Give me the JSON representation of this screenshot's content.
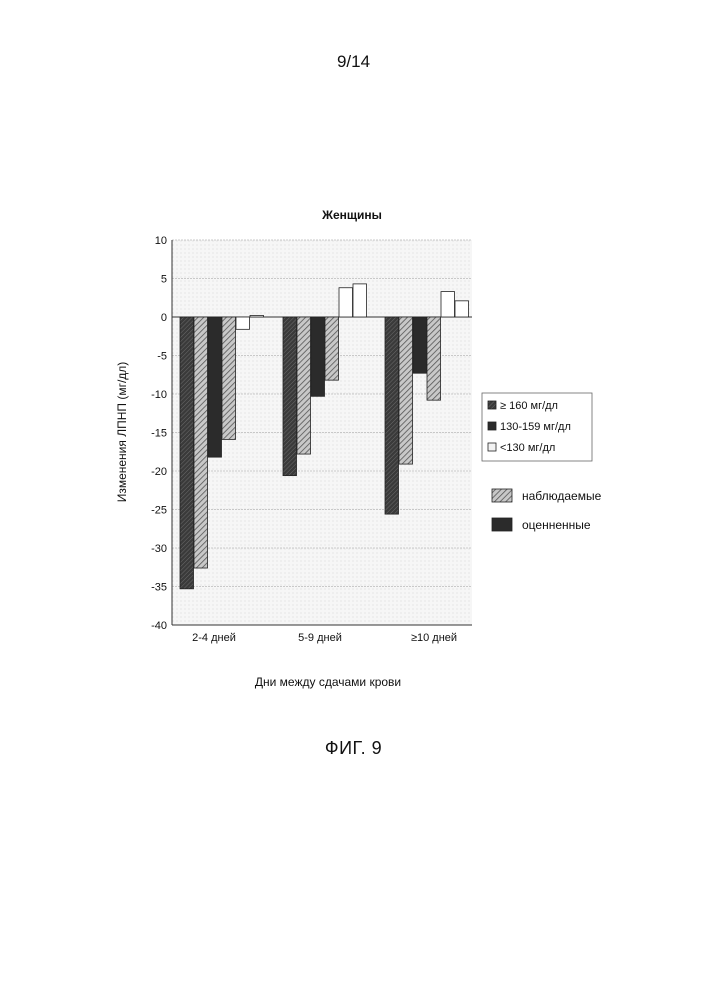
{
  "page_number": "9/14",
  "figure_caption": "ФИГ. 9",
  "chart_data": {
    "type": "bar",
    "title": "Женщины",
    "ylabel": "Изменения ЛПНП (мг/дл)",
    "xlabel": "Дни между сдачами крови",
    "ylim": [
      -40,
      10
    ],
    "yticks": [
      10,
      5,
      0,
      -5,
      -10,
      -15,
      -20,
      -25,
      -30,
      -35,
      -40
    ],
    "grid": true,
    "categories": [
      "2-4  дней",
      "5-9  дней",
      "≥10  дней"
    ],
    "series": [
      {
        "name": "≥ 160 мг/дл",
        "group": "≥ 160 мг/дл",
        "kind": "оценненные",
        "values": [
          -35.3,
          -20.6,
          -25.6
        ]
      },
      {
        "name": "≥ 160 мг/дл",
        "group": "≥ 160 мг/дл",
        "kind": "наблюдаемые",
        "values": [
          -32.6,
          -17.8,
          -19.1
        ]
      },
      {
        "name": "130-159 мг/дл",
        "group": "130-159 мг/дл",
        "kind": "оценненные",
        "values": [
          -18.2,
          -10.3,
          -7.3
        ]
      },
      {
        "name": "130-159 мг/дл",
        "group": "130-159 мг/дл",
        "kind": "наблюдаемые",
        "values": [
          -15.9,
          -8.2,
          -10.8
        ]
      },
      {
        "name": "<130 мг/дл",
        "group": "<130 мг/дл",
        "kind": "оценненные",
        "values": [
          -1.6,
          3.8,
          3.3
        ]
      },
      {
        "name": "<130 мг/дл",
        "group": "<130 мг/дл",
        "kind": "наблюдаемые",
        "values": [
          0.2,
          4.3,
          2.1
        ]
      }
    ],
    "legend_groups": [
      "≥ 160 мг/дл",
      "130-159 мг/дл",
      "<130 мг/дл"
    ],
    "legend_kinds": [
      "наблюдаемые",
      "оценненные"
    ],
    "legend_placement": "right",
    "colors": {
      "estimated_high": "#4a4a4a",
      "observed_high": "#9a9a9a",
      "estimated_mid": "#2b2b2b",
      "observed_mid": "#a6a6a6",
      "low": "#ffffff",
      "grid": "#bbbbbb",
      "plot_bg": "#f3f3f3"
    }
  }
}
